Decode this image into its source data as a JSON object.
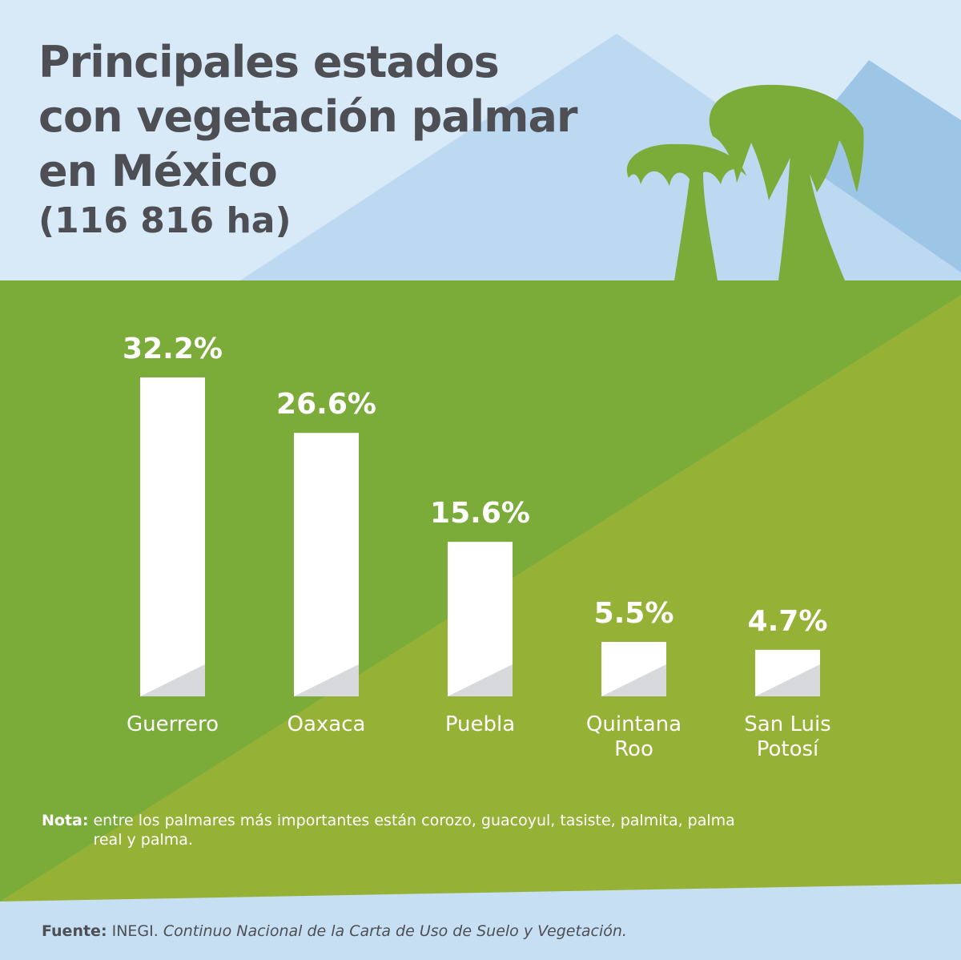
{
  "colors": {
    "sky": "#d8e9f7",
    "mountain_front": "#bcd9f1",
    "mountain_back": "#9dc6e6",
    "green_dark": "#7bac3a",
    "green_light": "#95b237",
    "bar": "#ffffff",
    "bar_shadow": "#d8d9dd",
    "title_text": "#4d4f55",
    "footer_band": "#c7dff2"
  },
  "header": {
    "title_lines": [
      "Principales estados",
      "con vegetación palmar",
      "en México"
    ],
    "subtitle": "(116 816 ha)"
  },
  "chart_data": {
    "type": "bar",
    "categories": [
      "Guerrero",
      "Oaxaca",
      "Puebla",
      "Quintana Roo",
      "San Luis Potosí"
    ],
    "category_lines": [
      [
        "Guerrero"
      ],
      [
        "Oaxaca"
      ],
      [
        "Puebla"
      ],
      [
        "Quintana",
        "Roo"
      ],
      [
        "San Luis",
        "Potosí"
      ]
    ],
    "values": [
      32.2,
      26.6,
      15.6,
      5.5,
      4.7
    ],
    "value_labels": [
      "32.2%",
      "26.6%",
      "15.6%",
      "5.5%",
      "4.7%"
    ],
    "unit": "%",
    "ylim": [
      0,
      32.2
    ],
    "grid": false,
    "legend": "none"
  },
  "note": {
    "label": "Nota:",
    "text": "entre los palmares más importantes están corozo, guacoyul, tasiste, palmita, palma real y palma."
  },
  "footer": {
    "label": "Fuente:",
    "source": "INEGI.",
    "title": "Continuo Nacional de la Carta de Uso de Suelo y Vegetación."
  }
}
